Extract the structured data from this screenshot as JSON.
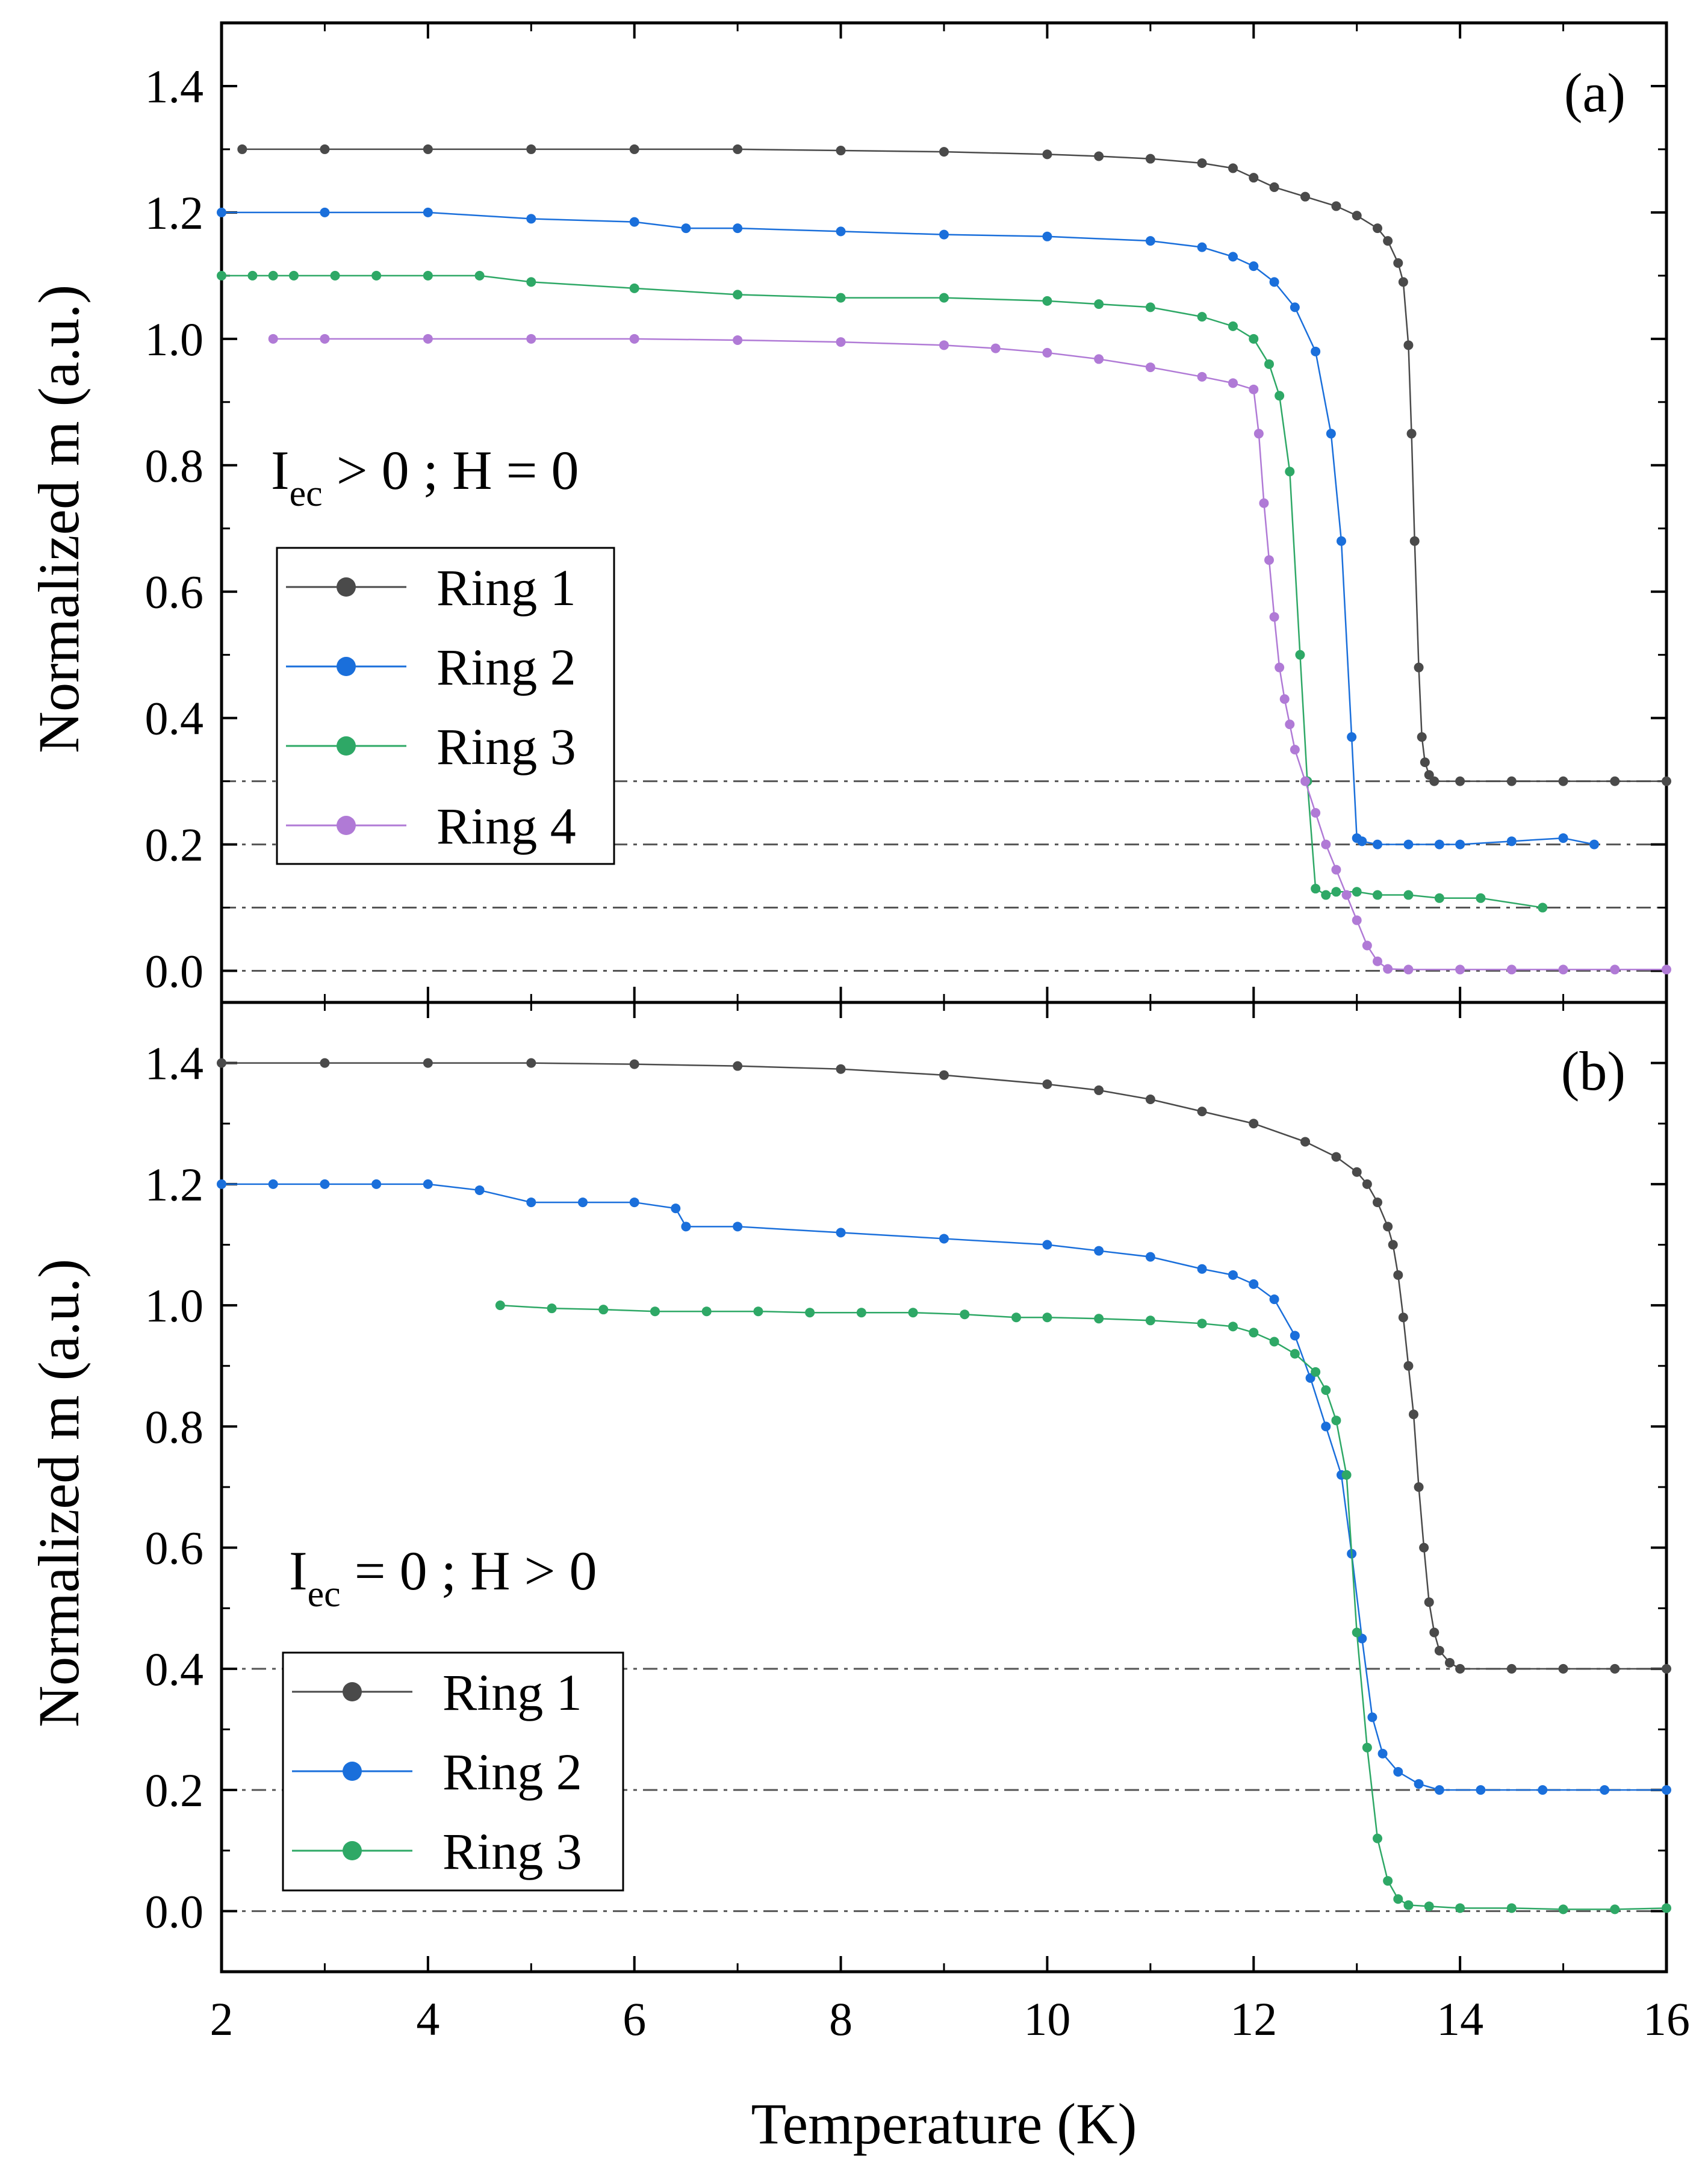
{
  "figure": {
    "xlabel": "Temperature (K)",
    "colors": {
      "ring1": "#4a4a4a",
      "ring2": "#1a6fdb",
      "ring3": "#2ea866",
      "ring4": "#b07ad6",
      "baseline": "#555555",
      "axis": "#000000"
    }
  },
  "chart_data": [
    {
      "type": "line",
      "panel_label": "(a)",
      "annotation": {
        "main_1": "I",
        "sub": "ec",
        "main_2": " > 0 ; H = 0"
      },
      "xlabel": "Temperature (K)",
      "ylabel": "Normalized m (a.u.)",
      "xlim": [
        2,
        16
      ],
      "ylim": [
        -0.05,
        1.5
      ],
      "xticks": [
        "2",
        "4",
        "6",
        "8",
        "10",
        "12",
        "14",
        "16"
      ],
      "xtick_values": [
        2,
        4,
        6,
        8,
        10,
        12,
        14,
        16
      ],
      "yticks": [
        "0.0",
        "0.2",
        "0.4",
        "0.6",
        "0.8",
        "1.0",
        "1.2",
        "1.4"
      ],
      "ytick_values": [
        0.0,
        0.2,
        0.4,
        0.6,
        0.8,
        1.0,
        1.2,
        1.4
      ],
      "baselines": [
        0.3,
        0.2,
        0.1,
        0.0
      ],
      "legend_position": "center-left",
      "series": [
        {
          "name": "Ring 1",
          "color": "#4a4a4a",
          "marker": 4.5,
          "x": [
            2.2,
            3.0,
            4.0,
            5.0,
            6.0,
            7.0,
            8.0,
            9.0,
            10.0,
            10.5,
            11.0,
            11.5,
            11.8,
            12.0,
            12.2,
            12.5,
            12.8,
            13.0,
            13.2,
            13.3,
            13.4,
            13.45,
            13.5,
            13.53,
            13.56,
            13.6,
            13.63,
            13.66,
            13.7,
            13.75,
            14.0,
            14.5,
            15.0,
            15.5,
            16.0
          ],
          "values": [
            1.3,
            1.3,
            1.3,
            1.3,
            1.3,
            1.3,
            1.298,
            1.296,
            1.292,
            1.289,
            1.285,
            1.278,
            1.27,
            1.255,
            1.24,
            1.225,
            1.21,
            1.195,
            1.175,
            1.155,
            1.12,
            1.09,
            0.99,
            0.85,
            0.68,
            0.48,
            0.37,
            0.33,
            0.31,
            0.3,
            0.3,
            0.3,
            0.3,
            0.3,
            0.3
          ]
        },
        {
          "name": "Ring 2",
          "color": "#1a6fdb",
          "marker": 4.5,
          "x": [
            2.0,
            3.0,
            4.0,
            5.0,
            6.0,
            6.5,
            7.0,
            8.0,
            9.0,
            10.0,
            11.0,
            11.5,
            11.8,
            12.0,
            12.2,
            12.4,
            12.6,
            12.75,
            12.85,
            12.95,
            13.0,
            13.05,
            13.2,
            13.5,
            13.8,
            14.0,
            14.5,
            15.0,
            15.3
          ],
          "values": [
            1.2,
            1.2,
            1.2,
            1.19,
            1.185,
            1.175,
            1.175,
            1.17,
            1.165,
            1.162,
            1.155,
            1.145,
            1.13,
            1.115,
            1.09,
            1.05,
            0.98,
            0.85,
            0.68,
            0.37,
            0.21,
            0.205,
            0.2,
            0.2,
            0.2,
            0.2,
            0.205,
            0.21,
            0.2
          ]
        },
        {
          "name": "Ring 3",
          "color": "#2ea866",
          "marker": 4.5,
          "x": [
            2.0,
            2.3,
            2.5,
            2.7,
            3.1,
            3.5,
            4.0,
            4.5,
            5.0,
            6.0,
            7.0,
            8.0,
            9.0,
            10.0,
            10.5,
            11.0,
            11.5,
            11.8,
            12.0,
            12.15,
            12.25,
            12.35,
            12.45,
            12.52,
            12.6,
            12.7,
            12.8,
            13.0,
            13.2,
            13.5,
            13.8,
            14.2,
            14.8
          ],
          "values": [
            1.1,
            1.1,
            1.1,
            1.1,
            1.1,
            1.1,
            1.1,
            1.1,
            1.09,
            1.08,
            1.07,
            1.065,
            1.065,
            1.06,
            1.055,
            1.05,
            1.035,
            1.02,
            1.0,
            0.96,
            0.91,
            0.79,
            0.5,
            0.3,
            0.13,
            0.12,
            0.125,
            0.125,
            0.12,
            0.12,
            0.115,
            0.115,
            0.1
          ]
        },
        {
          "name": "Ring 4",
          "color": "#b07ad6",
          "marker": 4.5,
          "x": [
            2.5,
            3.0,
            4.0,
            5.0,
            6.0,
            7.0,
            8.0,
            9.0,
            9.5,
            10.0,
            10.5,
            11.0,
            11.5,
            11.8,
            12.0,
            12.05,
            12.1,
            12.15,
            12.2,
            12.25,
            12.3,
            12.35,
            12.4,
            12.5,
            12.6,
            12.7,
            12.8,
            12.9,
            13.0,
            13.1,
            13.2,
            13.3,
            13.5,
            14.0,
            14.5,
            15.0,
            15.5,
            16.0
          ],
          "values": [
            1.0,
            1.0,
            1.0,
            1.0,
            1.0,
            0.998,
            0.995,
            0.99,
            0.985,
            0.978,
            0.968,
            0.955,
            0.94,
            0.93,
            0.92,
            0.85,
            0.74,
            0.65,
            0.56,
            0.48,
            0.43,
            0.39,
            0.35,
            0.3,
            0.25,
            0.2,
            0.16,
            0.12,
            0.08,
            0.04,
            0.015,
            0.003,
            0.002,
            0.002,
            0.002,
            0.002,
            0.002,
            0.002
          ]
        }
      ]
    },
    {
      "type": "line",
      "panel_label": "(b)",
      "annotation": {
        "main_1": "I",
        "sub": "ec",
        "main_2": " = 0 ; H > 0"
      },
      "xlabel": "Temperature (K)",
      "ylabel": "Normalized m (a.u.)",
      "xlim": [
        2,
        16
      ],
      "ylim": [
        -0.1,
        1.5
      ],
      "xticks": [
        "2",
        "4",
        "6",
        "8",
        "10",
        "12",
        "14",
        "16"
      ],
      "xtick_values": [
        2,
        4,
        6,
        8,
        10,
        12,
        14,
        16
      ],
      "yticks": [
        "0.0",
        "0.2",
        "0.4",
        "0.6",
        "0.8",
        "1.0",
        "1.2",
        "1.4"
      ],
      "ytick_values": [
        0.0,
        0.2,
        0.4,
        0.6,
        0.8,
        1.0,
        1.2,
        1.4
      ],
      "baselines": [
        0.4,
        0.2,
        0.0
      ],
      "legend_position": "lower-left",
      "series": [
        {
          "name": "Ring 1",
          "color": "#4a4a4a",
          "marker": 4.5,
          "x": [
            2.0,
            3.0,
            4.0,
            5.0,
            6.0,
            7.0,
            8.0,
            9.0,
            10.0,
            10.5,
            11.0,
            11.5,
            12.0,
            12.5,
            12.8,
            13.0,
            13.1,
            13.2,
            13.3,
            13.35,
            13.4,
            13.45,
            13.5,
            13.55,
            13.6,
            13.65,
            13.7,
            13.75,
            13.8,
            13.9,
            14.0,
            14.5,
            15.0,
            15.5,
            16.0
          ],
          "values": [
            1.4,
            1.4,
            1.4,
            1.4,
            1.398,
            1.395,
            1.39,
            1.38,
            1.365,
            1.355,
            1.34,
            1.32,
            1.3,
            1.27,
            1.245,
            1.22,
            1.2,
            1.17,
            1.13,
            1.1,
            1.05,
            0.98,
            0.9,
            0.82,
            0.7,
            0.6,
            0.51,
            0.46,
            0.43,
            0.41,
            0.4,
            0.4,
            0.4,
            0.4,
            0.4
          ]
        },
        {
          "name": "Ring 2",
          "color": "#1a6fdb",
          "marker": 4.5,
          "x": [
            2.0,
            2.5,
            3.0,
            3.5,
            4.0,
            4.5,
            5.0,
            5.5,
            6.0,
            6.4,
            6.5,
            7.0,
            8.0,
            9.0,
            10.0,
            10.5,
            11.0,
            11.5,
            11.8,
            12.0,
            12.2,
            12.4,
            12.55,
            12.7,
            12.85,
            12.95,
            13.05,
            13.15,
            13.25,
            13.4,
            13.6,
            13.8,
            14.2,
            14.8,
            15.4,
            16.0
          ],
          "values": [
            1.2,
            1.2,
            1.2,
            1.2,
            1.2,
            1.19,
            1.17,
            1.17,
            1.17,
            1.16,
            1.13,
            1.13,
            1.12,
            1.11,
            1.1,
            1.09,
            1.08,
            1.06,
            1.05,
            1.035,
            1.01,
            0.95,
            0.88,
            0.8,
            0.72,
            0.59,
            0.45,
            0.32,
            0.26,
            0.23,
            0.21,
            0.2,
            0.2,
            0.2,
            0.2,
            0.2
          ]
        },
        {
          "name": "Ring 3",
          "color": "#2ea866",
          "marker": 4.5,
          "x": [
            4.7,
            5.2,
            5.7,
            6.2,
            6.7,
            7.2,
            7.7,
            8.2,
            8.7,
            9.2,
            9.7,
            10.0,
            10.5,
            11.0,
            11.5,
            11.8,
            12.0,
            12.2,
            12.4,
            12.6,
            12.7,
            12.8,
            12.9,
            13.0,
            13.1,
            13.2,
            13.3,
            13.4,
            13.5,
            13.7,
            14.0,
            14.5,
            15.0,
            15.5,
            16.0
          ],
          "values": [
            1.0,
            0.995,
            0.993,
            0.99,
            0.99,
            0.99,
            0.988,
            0.988,
            0.988,
            0.985,
            0.98,
            0.98,
            0.978,
            0.975,
            0.97,
            0.965,
            0.955,
            0.94,
            0.92,
            0.89,
            0.86,
            0.81,
            0.72,
            0.46,
            0.27,
            0.12,
            0.05,
            0.02,
            0.01,
            0.008,
            0.005,
            0.005,
            0.003,
            0.003,
            0.005
          ]
        }
      ]
    }
  ]
}
